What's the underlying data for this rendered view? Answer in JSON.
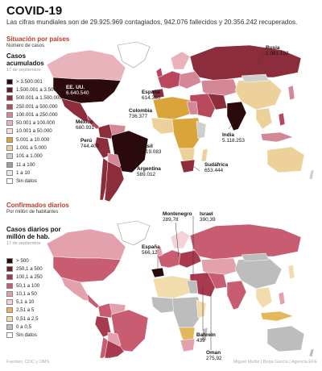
{
  "header": {
    "title": "COVID-19",
    "subtitle": "Las cifras mundiales son de 29.925.969 contagiados, 942.076 fallecidos y 20.356.242 recuperados."
  },
  "cases_section": {
    "title": "Situación por países",
    "subtitle": "Número de casos",
    "legend_title_1": "Casos",
    "legend_title_2": "acumulados",
    "legend_date": "17 de septiembre",
    "legend": [
      {
        "label": "> 3.500.001",
        "color": "#2b0a0d"
      },
      {
        "label": "1.500.001 a 3.500.000",
        "color": "#5e1a25"
      },
      {
        "label": "500.001 a 1.500.000",
        "color": "#8c2d3c"
      },
      {
        "label": "250.001 a 500.000",
        "color": "#b8485c"
      },
      {
        "label": "100.001 a 250.000",
        "color": "#d48796"
      },
      {
        "label": "50.001 a 100.000",
        "color": "#e9b3bc"
      },
      {
        "label": "10.001 a 50.000",
        "color": "#f5dde0"
      },
      {
        "label": "5.001 a 10.000",
        "color": "#d9a43a"
      },
      {
        "label": "1.001 a 5.000",
        "color": "#ecd19a"
      },
      {
        "label": "101 a 1.000",
        "color": "#cfcfcf"
      },
      {
        "label": "11 a 100",
        "color": "#9d9d9d"
      },
      {
        "label": "1 a 10",
        "color": "#e8e8e8"
      },
      {
        "label": "Sin datos",
        "color": "#ffffff"
      }
    ],
    "countries": [
      {
        "name": "Rusia",
        "value": "1.081.152"
      },
      {
        "name": "EE. UU.",
        "value": "6.640.540"
      },
      {
        "name": "España",
        "value": "614.360"
      },
      {
        "name": "Colombia",
        "value": "736.377"
      },
      {
        "name": "México",
        "value": "680.931"
      },
      {
        "name": "Perú",
        "value": "744.400"
      },
      {
        "name": "Brasil",
        "value": "4.419.083"
      },
      {
        "name": "India",
        "value": "5.118.253"
      },
      {
        "name": "Sudáfrica",
        "value": "653.444"
      },
      {
        "name": "Argentina",
        "value": "589.012"
      }
    ]
  },
  "daily_section": {
    "title": "Confirmados diarios",
    "subtitle": "Por millón de habitantes",
    "legend_title_1": "Casos diarios por",
    "legend_title_2": "millón de hab.",
    "legend_date": "17 de septiembre",
    "legend": [
      {
        "label": "> 500",
        "color": "#2b0a0d"
      },
      {
        "label": "250,1 a 500",
        "color": "#6b1e2c"
      },
      {
        "label": "100,1 a 250",
        "color": "#a83a4f"
      },
      {
        "label": "50,1 a 100",
        "color": "#c85d72"
      },
      {
        "label": "10,1 a 50",
        "color": "#e3a0ad"
      },
      {
        "label": "5,1 a 10",
        "color": "#f3d2d8"
      },
      {
        "label": "2,51 a 5",
        "color": "#e3b75a"
      },
      {
        "label": "0,51 a 2,5",
        "color": "#f1dcab"
      },
      {
        "label": "0 a 0,5",
        "color": "#bdbdbd"
      },
      {
        "label": "Sin datos",
        "color": "#ffffff"
      }
    ],
    "countries": [
      {
        "name": "Montenegro",
        "value": "289,78"
      },
      {
        "name": "Israel",
        "value": "390,39"
      },
      {
        "name": "España",
        "value": "566,12"
      },
      {
        "name": "Bahrein",
        "value": "439"
      },
      {
        "name": "Oman",
        "value": "275,92"
      }
    ]
  },
  "footer": {
    "sources": "Fuentes: CDC y OMS",
    "credits": "Miguel Muñiz | Borja García | Agencia EFE"
  }
}
